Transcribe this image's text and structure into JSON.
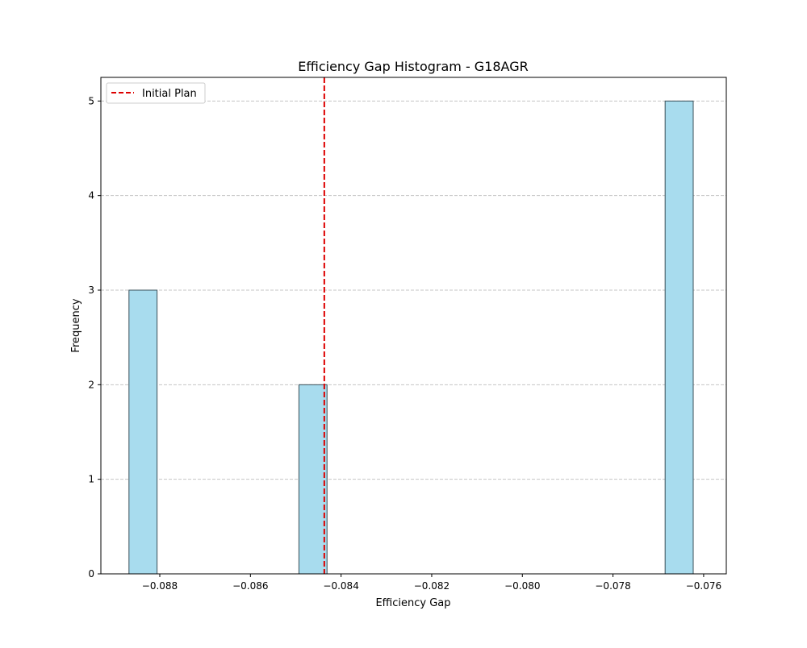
{
  "chart_data": {
    "type": "bar",
    "title": "Efficiency Gap Histogram - G18AGR",
    "xlabel": "Efficiency Gap",
    "ylabel": "Frequency",
    "xlim": [
      -0.0893,
      -0.0755
    ],
    "ylim": [
      0,
      5.25
    ],
    "xticks": [
      -0.088,
      -0.086,
      -0.084,
      -0.082,
      -0.08,
      -0.078,
      -0.076
    ],
    "xtick_labels": [
      "−0.088",
      "−0.086",
      "−0.084",
      "−0.082",
      "−0.080",
      "−0.078",
      "−0.076"
    ],
    "yticks": [
      0,
      1,
      2,
      3,
      4,
      5
    ],
    "ytick_labels": [
      "0",
      "1",
      "2",
      "3",
      "4",
      "5"
    ],
    "bins": [
      {
        "x0": -0.08868,
        "x1": -0.08806,
        "count": 3
      },
      {
        "x0": -0.08493,
        "x1": -0.08431,
        "count": 2
      },
      {
        "x0": -0.07685,
        "x1": -0.07623,
        "count": 5
      }
    ],
    "reference_line": {
      "label": "Initial Plan",
      "x": -0.08437,
      "color": "#dd0000",
      "style": "dashed"
    },
    "legend": {
      "entries": [
        "Initial Plan"
      ],
      "position": "upper left"
    },
    "grid": {
      "y": true,
      "x": false,
      "style": "dashed"
    },
    "colors": {
      "bar_fill": "#a8dcee",
      "bar_edge": "#3a4f58",
      "grid": "#c4c4c4"
    }
  }
}
